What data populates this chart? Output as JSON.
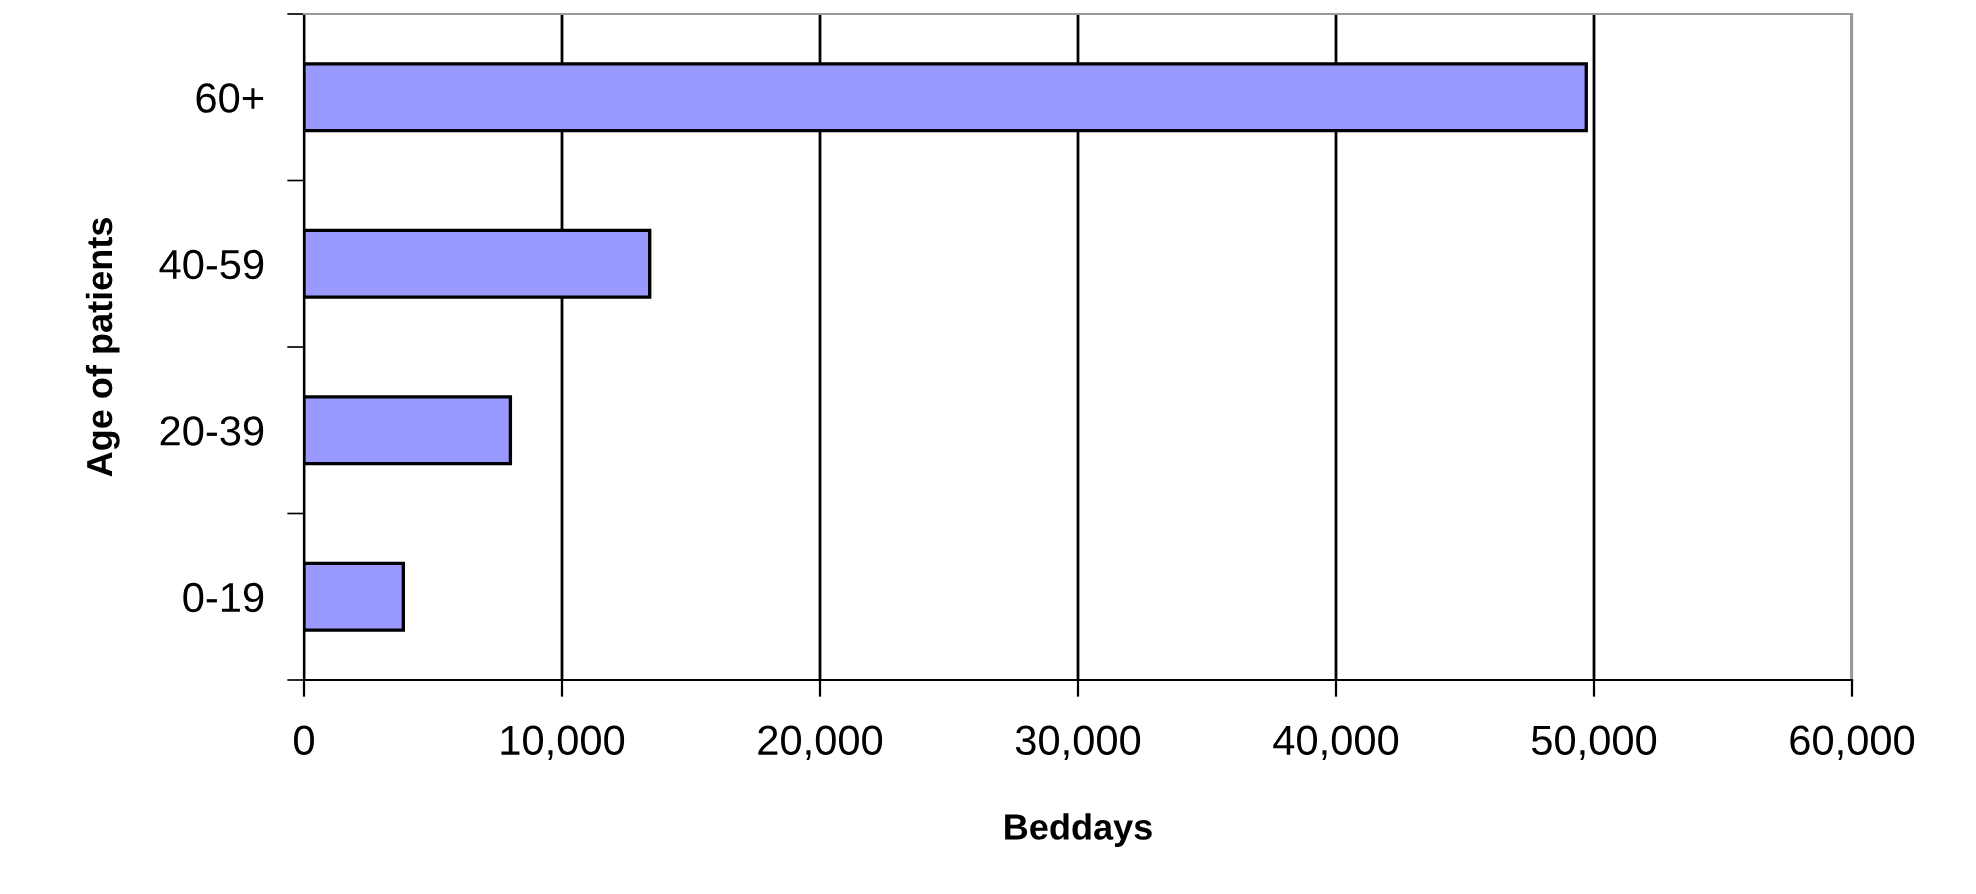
{
  "chart_data": {
    "type": "bar",
    "orientation": "horizontal",
    "xlabel": "Beddays",
    "ylabel": "Age of patients",
    "categories": [
      "60+",
      "40-59",
      "20-39",
      "0-19"
    ],
    "values": [
      49700,
      13400,
      8000,
      3850
    ],
    "color": "#9999ff",
    "xlim": [
      0,
      60000
    ],
    "xticks": [
      0,
      {
        "value": 10000,
        "label": "10,000"
      },
      {
        "value": 20000,
        "label": "20,000"
      },
      {
        "value": 30000,
        "label": "30,000"
      },
      {
        "value": 40000,
        "label": "40,000"
      },
      {
        "value": 50000,
        "label": "50,000"
      },
      {
        "value": 60000,
        "label": "60,000"
      }
    ],
    "grid": "x"
  }
}
